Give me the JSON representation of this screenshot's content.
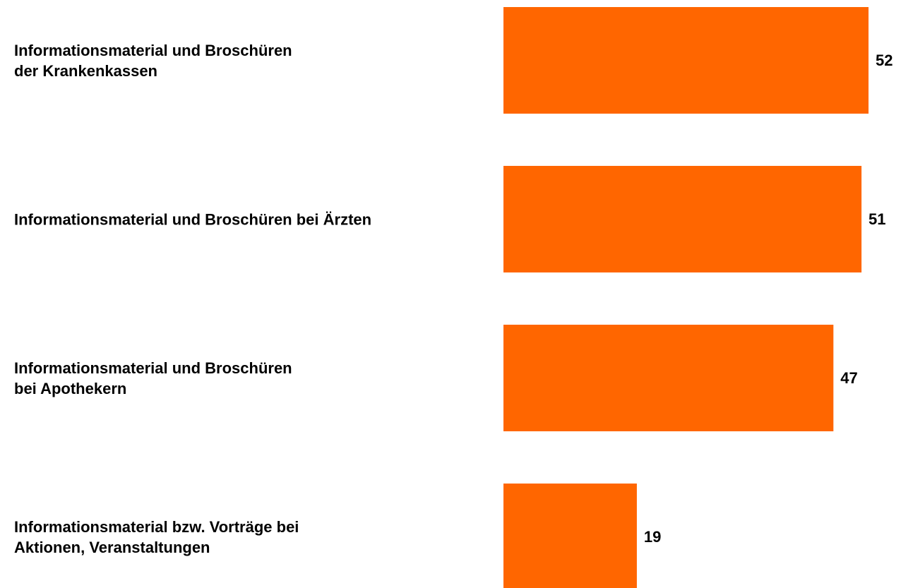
{
  "chart_data": {
    "type": "bar",
    "orientation": "horizontal",
    "categories": [
      "Informationsmaterial und Broschüren\nder Krankenkassen",
      "Informationsmaterial und Broschüren bei Ärzten",
      "Informationsmaterial und Broschüren\nbei Apothekern",
      "Informationsmaterial bzw. Vorträge bei\nAktionen, Veranstaltungen"
    ],
    "values": [
      52,
      51,
      47,
      19
    ],
    "color": "#ff6600"
  }
}
